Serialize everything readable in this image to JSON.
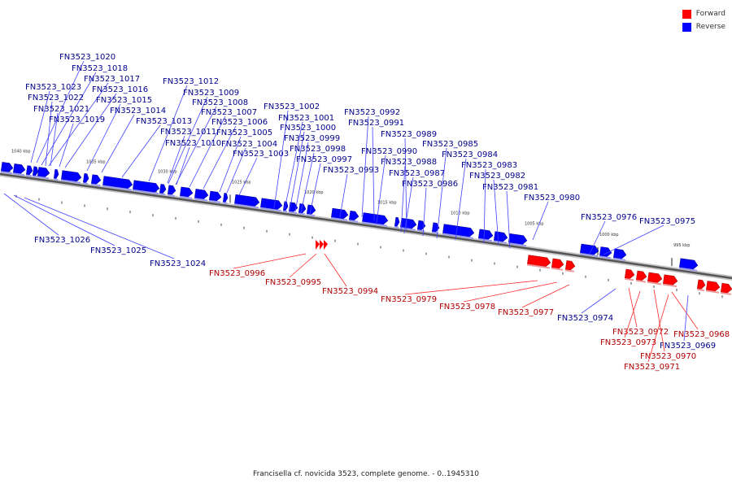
{
  "legend": {
    "forward_label": "Forward",
    "reverse_label": "Reverse",
    "forward_color": "#ff0000",
    "reverse_color": "#0000ff"
  },
  "caption": "Francisella cf. novicida 3523, complete genome. - 0..1945310",
  "ticks": [
    "1040 kbp",
    "1035 kbp",
    "1030 kbp",
    "1025 kbp",
    "1020 kbp",
    "1015 kbp",
    "1010 kbp",
    "1005 kbp",
    "1000 kbp",
    "995 kbp"
  ],
  "genes": [
    {
      "label": "FN3523_1020",
      "strand": "reverse"
    },
    {
      "label": "FN3523_1018",
      "strand": "reverse"
    },
    {
      "label": "FN3523_1017",
      "strand": "reverse"
    },
    {
      "label": "FN3523_1023",
      "strand": "reverse"
    },
    {
      "label": "FN3523_1016",
      "strand": "reverse"
    },
    {
      "label": "FN3523_1022",
      "strand": "reverse"
    },
    {
      "label": "FN3523_1015",
      "strand": "reverse"
    },
    {
      "label": "FN3523_1021",
      "strand": "reverse"
    },
    {
      "label": "FN3523_1014",
      "strand": "reverse"
    },
    {
      "label": "FN3523_1019",
      "strand": "reverse"
    },
    {
      "label": "FN3523_1013",
      "strand": "reverse"
    },
    {
      "label": "FN3523_1012",
      "strand": "reverse"
    },
    {
      "label": "FN3523_1009",
      "strand": "reverse"
    },
    {
      "label": "FN3523_1008",
      "strand": "reverse"
    },
    {
      "label": "FN3523_1007",
      "strand": "reverse"
    },
    {
      "label": "FN3523_1006",
      "strand": "reverse"
    },
    {
      "label": "FN3523_1011",
      "strand": "reverse"
    },
    {
      "label": "FN3523_1005",
      "strand": "reverse"
    },
    {
      "label": "FN3523_1010",
      "strand": "reverse"
    },
    {
      "label": "FN3523_1004",
      "strand": "reverse"
    },
    {
      "label": "FN3523_1003",
      "strand": "reverse"
    },
    {
      "label": "FN3523_1002",
      "strand": "reverse"
    },
    {
      "label": "FN3523_1001",
      "strand": "reverse"
    },
    {
      "label": "FN3523_1000",
      "strand": "reverse"
    },
    {
      "label": "FN3523_0999",
      "strand": "reverse"
    },
    {
      "label": "FN3523_0998",
      "strand": "reverse"
    },
    {
      "label": "FN3523_0997",
      "strand": "reverse"
    },
    {
      "label": "FN3523_0993",
      "strand": "reverse"
    },
    {
      "label": "FN3523_0992",
      "strand": "reverse"
    },
    {
      "label": "FN3523_0991",
      "strand": "reverse"
    },
    {
      "label": "FN3523_0989",
      "strand": "reverse"
    },
    {
      "label": "FN3523_0990",
      "strand": "reverse"
    },
    {
      "label": "FN3523_0988",
      "strand": "reverse"
    },
    {
      "label": "FN3523_0987",
      "strand": "reverse"
    },
    {
      "label": "FN3523_0986",
      "strand": "reverse"
    },
    {
      "label": "FN3523_0985",
      "strand": "reverse"
    },
    {
      "label": "FN3523_0984",
      "strand": "reverse"
    },
    {
      "label": "FN3523_0983",
      "strand": "reverse"
    },
    {
      "label": "FN3523_0982",
      "strand": "reverse"
    },
    {
      "label": "FN3523_0981",
      "strand": "reverse"
    },
    {
      "label": "FN3523_0980",
      "strand": "reverse"
    },
    {
      "label": "FN3523_0976",
      "strand": "reverse"
    },
    {
      "label": "FN3523_0975",
      "strand": "reverse"
    },
    {
      "label": "FN3523_1026",
      "strand": "reverse"
    },
    {
      "label": "FN3523_1025",
      "strand": "reverse"
    },
    {
      "label": "FN3523_1024",
      "strand": "reverse"
    },
    {
      "label": "FN3523_0996",
      "strand": "forward"
    },
    {
      "label": "FN3523_0995",
      "strand": "forward"
    },
    {
      "label": "FN3523_0994",
      "strand": "forward"
    },
    {
      "label": "FN3523_0979",
      "strand": "forward"
    },
    {
      "label": "FN3523_0978",
      "strand": "forward"
    },
    {
      "label": "FN3523_0977",
      "strand": "forward"
    },
    {
      "label": "FN3523_0974",
      "strand": "reverse"
    },
    {
      "label": "FN3523_0972",
      "strand": "forward"
    },
    {
      "label": "FN3523_0973",
      "strand": "forward"
    },
    {
      "label": "FN3523_0968",
      "strand": "forward"
    },
    {
      "label": "FN3523_0969",
      "strand": "reverse"
    },
    {
      "label": "FN3523_0970",
      "strand": "forward"
    },
    {
      "label": "FN3523_0971",
      "strand": "forward"
    }
  ]
}
